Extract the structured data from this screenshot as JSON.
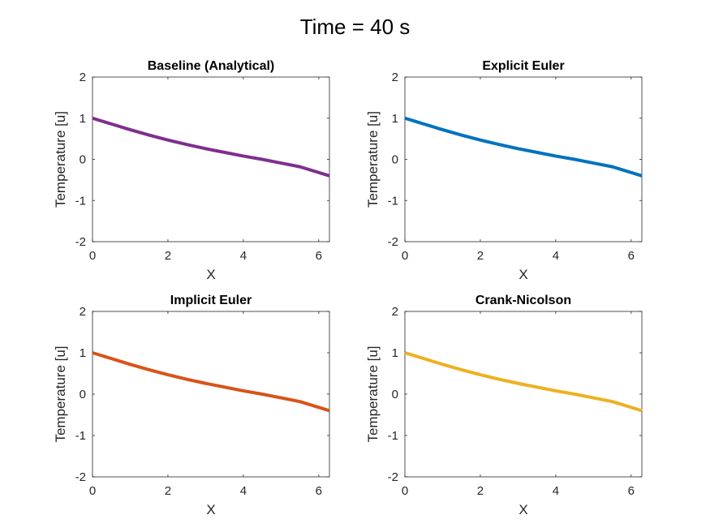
{
  "figure": {
    "title": "Time = 40 s"
  },
  "chart_data": [
    {
      "type": "line",
      "title": "Baseline (Analytical)",
      "xlabel": "X",
      "ylabel": "Temperature [u]",
      "xlim": [
        0,
        6.283
      ],
      "ylim": [
        -2,
        2
      ],
      "xticks": [
        0,
        2,
        4,
        6
      ],
      "yticks": [
        -2,
        -1,
        0,
        1,
        2
      ],
      "color": "#7E2F8E",
      "x": [
        0,
        0.5,
        1,
        1.5,
        2,
        2.5,
        3,
        3.5,
        4,
        4.5,
        5,
        5.5,
        6,
        6.283
      ],
      "y": [
        1.0,
        0.86,
        0.72,
        0.59,
        0.47,
        0.36,
        0.26,
        0.17,
        0.08,
        0.0,
        -0.09,
        -0.18,
        -0.32,
        -0.4
      ]
    },
    {
      "type": "line",
      "title": "Explicit Euler",
      "xlabel": "X",
      "ylabel": "Temperature [u]",
      "xlim": [
        0,
        6.283
      ],
      "ylim": [
        -2,
        2
      ],
      "xticks": [
        0,
        2,
        4,
        6
      ],
      "yticks": [
        -2,
        -1,
        0,
        1,
        2
      ],
      "color": "#0072BD",
      "x": [
        0,
        0.5,
        1,
        1.5,
        2,
        2.5,
        3,
        3.5,
        4,
        4.5,
        5,
        5.5,
        6,
        6.283
      ],
      "y": [
        1.0,
        0.86,
        0.72,
        0.59,
        0.47,
        0.36,
        0.26,
        0.17,
        0.08,
        0.0,
        -0.09,
        -0.18,
        -0.32,
        -0.4
      ]
    },
    {
      "type": "line",
      "title": "Implicit Euler",
      "xlabel": "X",
      "ylabel": "Temperature [u]",
      "xlim": [
        0,
        6.283
      ],
      "ylim": [
        -2,
        2
      ],
      "xticks": [
        0,
        2,
        4,
        6
      ],
      "yticks": [
        -2,
        -1,
        0,
        1,
        2
      ],
      "color": "#D95319",
      "x": [
        0,
        0.5,
        1,
        1.5,
        2,
        2.5,
        3,
        3.5,
        4,
        4.5,
        5,
        5.5,
        6,
        6.283
      ],
      "y": [
        1.0,
        0.86,
        0.72,
        0.59,
        0.47,
        0.36,
        0.26,
        0.17,
        0.08,
        0.0,
        -0.09,
        -0.18,
        -0.32,
        -0.4
      ]
    },
    {
      "type": "line",
      "title": "Crank-Nicolson",
      "xlabel": "X",
      "ylabel": "Temperature [u]",
      "xlim": [
        0,
        6.283
      ],
      "ylim": [
        -2,
        2
      ],
      "xticks": [
        0,
        2,
        4,
        6
      ],
      "yticks": [
        -2,
        -1,
        0,
        1,
        2
      ],
      "color": "#EDB120",
      "x": [
        0,
        0.5,
        1,
        1.5,
        2,
        2.5,
        3,
        3.5,
        4,
        4.5,
        5,
        5.5,
        6,
        6.283
      ],
      "y": [
        1.0,
        0.86,
        0.72,
        0.59,
        0.47,
        0.36,
        0.26,
        0.17,
        0.08,
        0.0,
        -0.09,
        -0.18,
        -0.32,
        -0.4
      ]
    }
  ]
}
